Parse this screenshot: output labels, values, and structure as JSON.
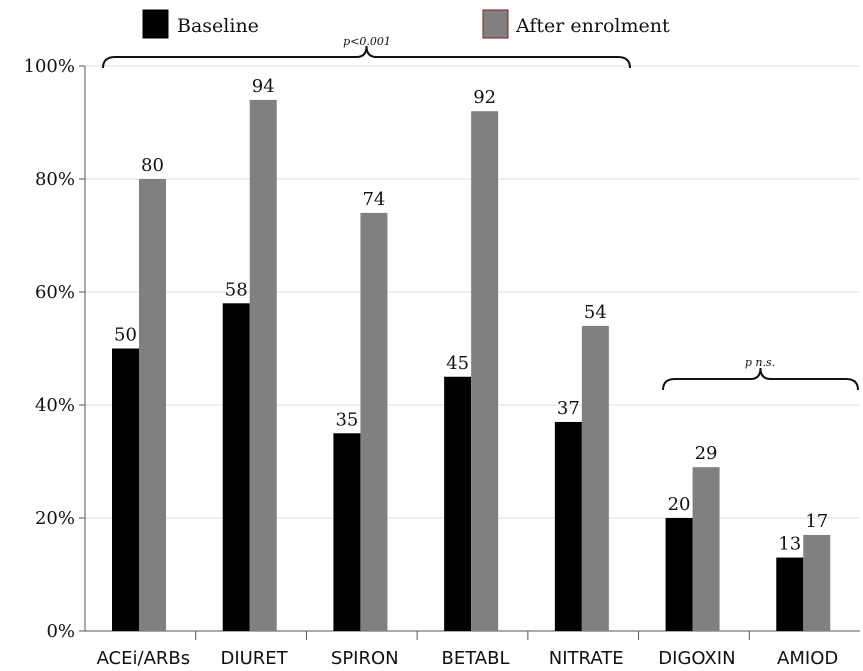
{
  "chart_data": {
    "type": "bar",
    "categories": [
      "ACEi/ARBs",
      "DIURET",
      "SPIRON",
      "BETABL",
      "NITRATE",
      "DIGOXIN",
      "AMIOD"
    ],
    "series": [
      {
        "name": "Baseline",
        "values": [
          50,
          58,
          35,
          45,
          37,
          20,
          13
        ],
        "color": "#000000"
      },
      {
        "name": "After enrolment",
        "values": [
          80,
          94,
          74,
          92,
          54,
          29,
          17
        ],
        "color": "#808080",
        "stroke": "#8b1a1a"
      }
    ],
    "y_ticks": [
      "0%",
      "20%",
      "40%",
      "60%",
      "80%",
      "100%"
    ],
    "ylim": [
      0,
      100
    ],
    "grid": true,
    "legend_position": "top",
    "annotations": [
      {
        "text": "p<0.001",
        "span": [
          "ACEi/ARBs",
          "NITRATE"
        ]
      },
      {
        "text": "p n.s.",
        "span": [
          "DIGOXIN",
          "AMIOD"
        ]
      }
    ]
  }
}
